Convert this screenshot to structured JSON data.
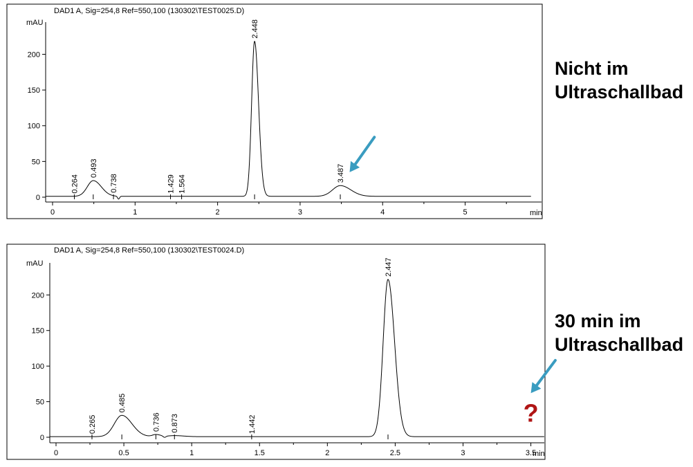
{
  "labels": {
    "top_line1": "Nicht im",
    "top_line2": "Ultraschallbad",
    "bottom_line1": "30 min im",
    "bottom_line2": "Ultraschallbad",
    "question_mark": "?"
  },
  "colors": {
    "arrow": "#3a9cc0",
    "question_mark": "#b01515",
    "trace": "#000000"
  },
  "chart_data": [
    {
      "type": "line",
      "header": "DAD1 A, Sig=254,8 Ref=550,100 (130302\\TEST0025.D)",
      "ylabel": "mAU",
      "xunit": "min",
      "xlim": [
        0,
        5.8
      ],
      "ylim": [
        0,
        245
      ],
      "xticks": [
        0,
        1,
        2,
        3,
        4,
        5
      ],
      "xtick_labels": [
        "0",
        "1",
        "2",
        "3",
        "4",
        "5"
      ],
      "yticks": [
        0,
        50,
        100,
        150,
        200
      ],
      "baseline": 1.2,
      "peaks": [
        {
          "rt": 0.264,
          "label": "0.264",
          "height": 0,
          "width": 0.03
        },
        {
          "rt": 0.493,
          "label": "0.493",
          "height": 22,
          "width": 0.085
        },
        {
          "rt": 0.738,
          "label": "0.738",
          "height": 0,
          "width": 0.03
        },
        {
          "rt": 1.429,
          "label": "1.429",
          "height": 0,
          "width": 0.03
        },
        {
          "rt": 1.564,
          "label": "1.564",
          "height": 0,
          "width": 0.03
        },
        {
          "rt": 2.448,
          "label": "2.448",
          "height": 217,
          "width": 0.042
        },
        {
          "rt": 3.487,
          "label": "3.487",
          "height": 15,
          "width": 0.11
        }
      ],
      "dips": [
        {
          "rt": 0.8,
          "depth": 4,
          "width": 0.012
        }
      ],
      "annotation_arrow": {
        "from": [
          3.9,
          84
        ],
        "to": [
          3.6,
          35
        ]
      }
    },
    {
      "type": "line",
      "header": "DAD1 A, Sig=254,8 Ref=550,100 (130302\\TEST0024.D)",
      "ylabel": "mAU",
      "xunit": "min",
      "xlim": [
        0,
        3.65
      ],
      "ylim": [
        0,
        245
      ],
      "xticks": [
        0,
        0.5,
        1,
        1.5,
        2,
        2.5,
        3,
        3.5
      ],
      "xtick_labels": [
        "0",
        "0.5",
        "1",
        "1.5",
        "2",
        "2.5",
        "3",
        "3.5"
      ],
      "yticks": [
        0,
        50,
        100,
        150,
        200
      ],
      "baseline": 0.8,
      "peaks": [
        {
          "rt": 0.265,
          "label": "0.265",
          "height": 0,
          "width": 0.02
        },
        {
          "rt": 0.485,
          "label": "0.485",
          "height": 30,
          "width": 0.065
        },
        {
          "rt": 0.736,
          "label": "0.736",
          "height": 3,
          "width": 0.03
        },
        {
          "rt": 0.873,
          "label": "0.873",
          "height": 1.5,
          "width": 0.06
        },
        {
          "rt": 1.442,
          "label": "1.442",
          "height": 0,
          "width": 0.02
        },
        {
          "rt": 2.447,
          "label": "2.447",
          "height": 221,
          "width": 0.042
        }
      ],
      "dips": [
        {
          "rt": 0.8,
          "depth": 2,
          "width": 0.01
        }
      ],
      "annotation_arrow": {
        "from": [
          3.68,
          108
        ],
        "to": [
          3.5,
          62
        ]
      },
      "question_mark_at": [
        3.5,
        22
      ]
    }
  ]
}
